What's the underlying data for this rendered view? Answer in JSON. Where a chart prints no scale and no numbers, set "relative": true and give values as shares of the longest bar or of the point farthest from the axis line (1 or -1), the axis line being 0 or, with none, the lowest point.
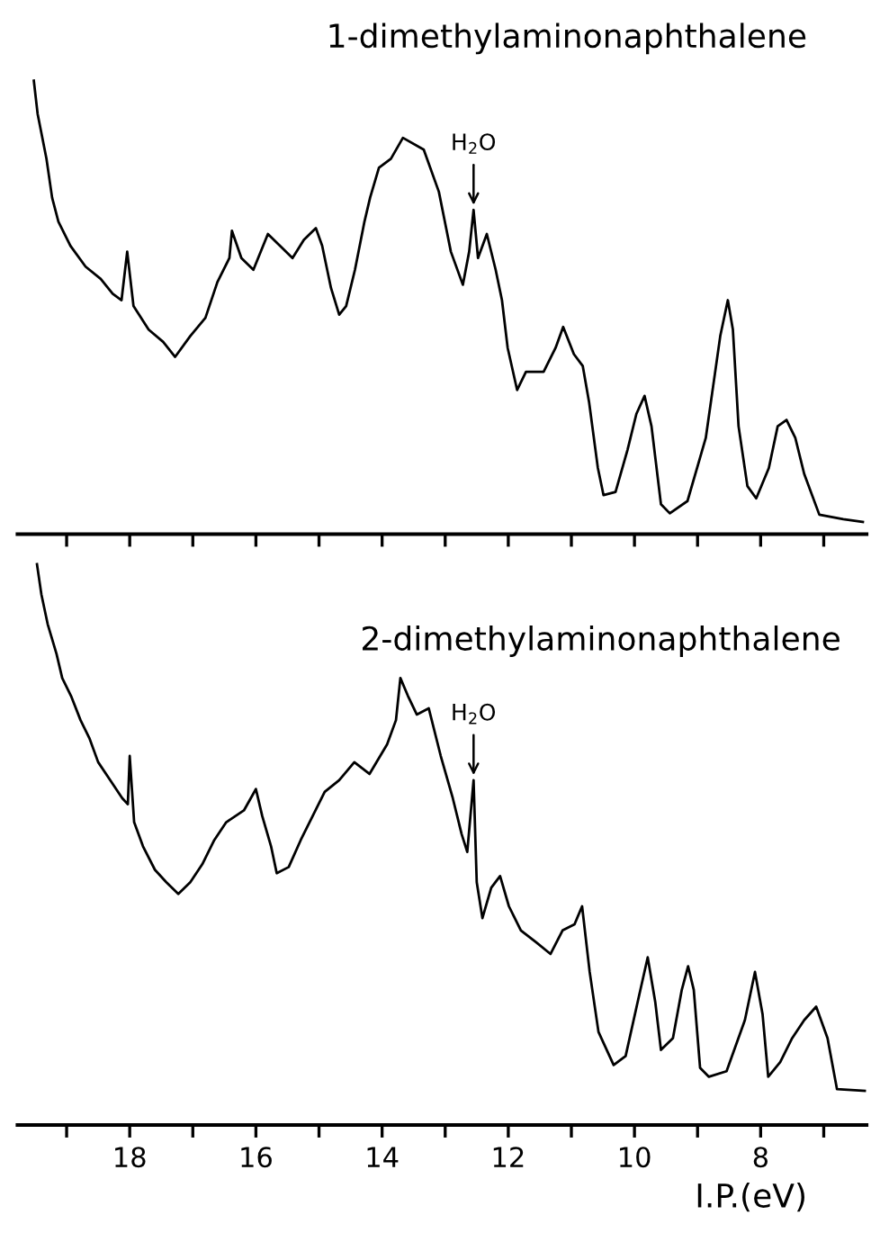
{
  "chart_data": [
    {
      "type": "line",
      "title": "1-dimethylaminonaphthalene",
      "relative": true,
      "tick_labels": false,
      "xlim": [
        19.78,
        6.32
      ],
      "xticks": [
        19,
        18,
        17,
        16,
        15,
        14,
        13,
        12,
        11,
        10,
        9,
        8,
        7
      ],
      "annotations": [
        {
          "text": "H$_{2}$O",
          "x": 12.55,
          "y": 0.715
        }
      ],
      "series": [
        {
          "color": "#000000",
          "x": [
            19.52,
            19.46,
            19.32,
            19.23,
            19.13,
            18.94,
            18.7,
            18.46,
            18.27,
            18.13,
            18.04,
            17.94,
            17.7,
            17.47,
            17.28,
            17.04,
            16.8,
            16.61,
            16.42,
            16.38,
            16.23,
            16.04,
            15.81,
            15.62,
            15.42,
            15.24,
            15.05,
            14.95,
            14.81,
            14.68,
            14.57,
            14.43,
            14.28,
            14.19,
            14.05,
            13.86,
            13.67,
            13.34,
            13.1,
            12.91,
            12.72,
            12.62,
            12.55,
            12.48,
            12.34,
            12.2,
            12.1,
            12.01,
            11.86,
            11.72,
            11.44,
            11.25,
            11.13,
            10.96,
            10.82,
            10.72,
            10.58,
            10.49,
            10.3,
            10.11,
            9.97,
            9.84,
            9.73,
            9.58,
            9.44,
            9.16,
            8.87,
            8.64,
            8.52,
            8.44,
            8.35,
            8.21,
            8.07,
            7.87,
            7.73,
            7.59,
            7.45,
            7.31,
            7.07,
            6.69,
            6.38
          ],
          "values": [
            1.0,
            0.927,
            0.828,
            0.742,
            0.689,
            0.636,
            0.59,
            0.563,
            0.53,
            0.516,
            0.623,
            0.503,
            0.451,
            0.424,
            0.391,
            0.437,
            0.477,
            0.556,
            0.609,
            0.669,
            0.609,
            0.583,
            0.662,
            0.636,
            0.609,
            0.649,
            0.675,
            0.636,
            0.543,
            0.484,
            0.503,
            0.583,
            0.689,
            0.742,
            0.808,
            0.828,
            0.874,
            0.848,
            0.755,
            0.623,
            0.55,
            0.623,
            0.715,
            0.609,
            0.662,
            0.583,
            0.516,
            0.411,
            0.318,
            0.358,
            0.358,
            0.411,
            0.457,
            0.397,
            0.371,
            0.292,
            0.146,
            0.086,
            0.093,
            0.186,
            0.265,
            0.305,
            0.238,
            0.066,
            0.046,
            0.073,
            0.212,
            0.437,
            0.516,
            0.451,
            0.238,
            0.106,
            0.079,
            0.146,
            0.238,
            0.252,
            0.212,
            0.133,
            0.043,
            0.033,
            0.027
          ]
        }
      ]
    },
    {
      "type": "line",
      "title": "2-dimethylaminonaphthalene",
      "xlabel": "I.P.(eV)",
      "relative": true,
      "tick_labels": "x",
      "xlim": [
        19.78,
        6.32
      ],
      "xticks": [
        {
          "value": 19,
          "label": null
        },
        18,
        {
          "value": 17,
          "label": null
        },
        16,
        {
          "value": 15,
          "label": null
        },
        14,
        {
          "value": 13,
          "label": null
        },
        12,
        {
          "value": 11,
          "label": null
        },
        10,
        {
          "value": 9,
          "label": null
        },
        8,
        {
          "value": 7,
          "label": null
        }
      ],
      "annotations": [
        {
          "text": "H$_{2}$O",
          "x": 12.55,
          "y": 0.615
        }
      ],
      "series": [
        {
          "color": "#000000",
          "x": [
            19.47,
            19.4,
            19.3,
            19.16,
            19.07,
            18.93,
            18.78,
            18.64,
            18.5,
            18.31,
            18.12,
            18.03,
            18.0,
            17.93,
            17.79,
            17.6,
            17.42,
            17.23,
            17.04,
            16.85,
            16.66,
            16.47,
            16.19,
            16.0,
            15.9,
            15.76,
            15.67,
            15.48,
            15.29,
            15.1,
            14.91,
            14.68,
            14.44,
            14.2,
            13.92,
            13.78,
            13.71,
            13.59,
            13.45,
            13.26,
            13.07,
            12.88,
            12.74,
            12.65,
            12.55,
            12.5,
            12.41,
            12.27,
            12.13,
            11.99,
            11.8,
            11.56,
            11.33,
            11.14,
            10.95,
            10.83,
            10.71,
            10.57,
            10.33,
            10.14,
            9.95,
            9.79,
            9.67,
            9.58,
            9.39,
            9.25,
            9.15,
            9.06,
            8.96,
            8.82,
            8.54,
            8.25,
            8.09,
            7.97,
            7.88,
            7.69,
            7.5,
            7.31,
            7.12,
            6.94,
            6.79,
            6.35
          ],
          "values": [
            1.0,
            0.946,
            0.893,
            0.84,
            0.797,
            0.765,
            0.722,
            0.69,
            0.647,
            0.615,
            0.583,
            0.572,
            0.658,
            0.54,
            0.497,
            0.455,
            0.433,
            0.412,
            0.433,
            0.465,
            0.508,
            0.54,
            0.561,
            0.599,
            0.551,
            0.497,
            0.449,
            0.46,
            0.508,
            0.551,
            0.594,
            0.615,
            0.647,
            0.626,
            0.679,
            0.722,
            0.797,
            0.765,
            0.732,
            0.743,
            0.658,
            0.583,
            0.519,
            0.487,
            0.615,
            0.433,
            0.369,
            0.423,
            0.444,
            0.39,
            0.347,
            0.326,
            0.305,
            0.347,
            0.358,
            0.39,
            0.273,
            0.166,
            0.107,
            0.123,
            0.219,
            0.299,
            0.219,
            0.134,
            0.155,
            0.241,
            0.283,
            0.241,
            0.102,
            0.086,
            0.096,
            0.187,
            0.273,
            0.198,
            0.086,
            0.112,
            0.155,
            0.187,
            0.211,
            0.155,
            0.064,
            0.061
          ]
        }
      ]
    }
  ]
}
